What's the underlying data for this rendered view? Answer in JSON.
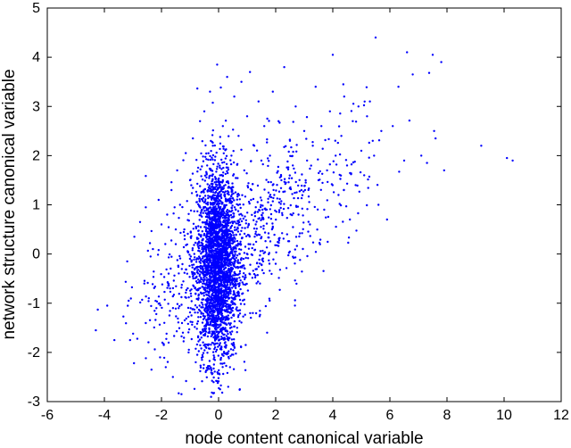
{
  "chart_data": {
    "type": "scatter",
    "xlabel": "node content canonical variable",
    "ylabel": "network structure canonical variable",
    "xlim": [
      -6,
      12
    ],
    "ylim": [
      -3,
      5
    ],
    "x_ticks": [
      "-6",
      "-4",
      "-2",
      "0",
      "2",
      "4",
      "6",
      "8",
      "10",
      "12"
    ],
    "y_ticks": [
      "-3",
      "-2",
      "-1",
      "0",
      "1",
      "2",
      "3",
      "4",
      "5"
    ],
    "grid": false,
    "marker_color": "#0000ff",
    "series": [
      {
        "values_note": "",
        "points": [
          [
            -4.3,
            -1.55
          ],
          [
            -3.9,
            -1.05
          ],
          [
            -3.65,
            -1.75
          ],
          [
            -3.2,
            -0.15
          ],
          [
            -3.15,
            -0.95
          ],
          [
            -3.1,
            -1.75
          ],
          [
            -2.95,
            0.35
          ],
          [
            -2.75,
            0.65
          ],
          [
            -2.6,
            -0.6
          ],
          [
            -2.55,
            0.95
          ],
          [
            -2.35,
            -2.35
          ],
          [
            -2.3,
            0.1
          ],
          [
            -2.1,
            1.1
          ],
          [
            -2.05,
            -2.1
          ],
          [
            -2.0,
            0.6
          ],
          [
            -1.9,
            -1.4
          ],
          [
            -1.85,
            -2.3
          ],
          [
            -1.8,
            0.8
          ],
          [
            -1.75,
            -1.8
          ],
          [
            -1.7,
            -0.7
          ],
          [
            -1.65,
            1.3
          ],
          [
            -1.6,
            -2.5
          ],
          [
            -1.5,
            0.2
          ],
          [
            -1.45,
            1.7
          ],
          [
            -1.4,
            -1.1
          ],
          [
            -1.35,
            1.0
          ],
          [
            -1.3,
            -2.85
          ],
          [
            -1.25,
            -1.6
          ],
          [
            -1.2,
            0.5
          ],
          [
            -1.15,
            2.05
          ],
          [
            -1.1,
            -0.4
          ],
          [
            -1.05,
            -2.0
          ],
          [
            -1.0,
            1.5
          ],
          [
            -0.95,
            -1.25
          ],
          [
            -0.9,
            2.35
          ],
          [
            -0.85,
            0.0
          ],
          [
            -0.8,
            -2.2
          ],
          [
            -0.75,
            1.2
          ],
          [
            -0.7,
            -0.9
          ],
          [
            -0.65,
            2.7
          ],
          [
            -0.6,
            -1.7
          ],
          [
            -0.55,
            0.3
          ],
          [
            -0.5,
            2.9
          ],
          [
            -0.45,
            -2.4
          ],
          [
            -0.4,
            1.8
          ],
          [
            -0.35,
            -0.2
          ],
          [
            -0.3,
            3.3
          ],
          [
            -0.25,
            -1.35
          ],
          [
            -0.2,
            2.2
          ],
          [
            -0.15,
            -2.1
          ],
          [
            -0.1,
            0.7
          ],
          [
            -0.05,
            3.85
          ],
          [
            0.0,
            -0.5
          ],
          [
            0.05,
            1.6
          ],
          [
            0.1,
            -1.9
          ],
          [
            0.15,
            2.6
          ],
          [
            0.2,
            0.1
          ],
          [
            0.25,
            -1.0
          ],
          [
            0.3,
            3.6
          ],
          [
            0.35,
            1.1
          ],
          [
            0.4,
            -2.3
          ],
          [
            0.45,
            2.0
          ],
          [
            0.5,
            -0.3
          ],
          [
            0.55,
            3.2
          ],
          [
            0.6,
            0.9
          ],
          [
            0.65,
            -1.5
          ],
          [
            0.7,
            2.4
          ],
          [
            0.75,
            0.4
          ],
          [
            0.8,
            3.5
          ],
          [
            0.85,
            -0.8
          ],
          [
            0.9,
            1.7
          ],
          [
            0.95,
            -1.85
          ],
          [
            1.0,
            2.8
          ],
          [
            1.05,
            0.2
          ],
          [
            1.1,
            3.7
          ],
          [
            1.15,
            1.3
          ],
          [
            1.2,
            -1.2
          ],
          [
            1.25,
            2.2
          ],
          [
            1.3,
            0.6
          ],
          [
            1.4,
            3.1
          ],
          [
            1.45,
            -0.6
          ],
          [
            1.5,
            1.9
          ],
          [
            1.6,
            2.6
          ],
          [
            1.65,
            0.9
          ],
          [
            1.7,
            -1.6
          ],
          [
            1.8,
            2.0
          ],
          [
            1.9,
            3.3
          ],
          [
            1.95,
            1.2
          ],
          [
            2.0,
            -0.2
          ],
          [
            2.1,
            2.7
          ],
          [
            2.2,
            1.5
          ],
          [
            2.3,
            3.8
          ],
          [
            2.4,
            0.4
          ],
          [
            2.5,
            2.3
          ],
          [
            2.6,
            1.8
          ],
          [
            2.7,
            3.0
          ],
          [
            2.8,
            0.8
          ],
          [
            2.9,
            1.3
          ],
          [
            3.0,
            2.5
          ],
          [
            3.1,
            1.9
          ],
          [
            3.2,
            0.6
          ],
          [
            3.3,
            2.2
          ],
          [
            3.4,
            3.4
          ],
          [
            3.5,
            1.5
          ],
          [
            3.6,
            2.6
          ],
          [
            3.7,
            0.9
          ],
          [
            3.8,
            1.7
          ],
          [
            3.9,
            2.9
          ],
          [
            4.0,
            4.05
          ],
          [
            4.1,
            2.0
          ],
          [
            4.2,
            1.2
          ],
          [
            4.3,
            2.4
          ],
          [
            4.4,
            3.2
          ],
          [
            4.5,
            1.8
          ],
          [
            4.6,
            0.7
          ],
          [
            4.7,
            2.7
          ],
          [
            4.8,
            1.4
          ],
          [
            4.9,
            3.0
          ],
          [
            5.0,
            2.1
          ],
          [
            5.1,
            1.6
          ],
          [
            5.2,
            2.8
          ],
          [
            5.3,
            3.1
          ],
          [
            5.4,
            2.3
          ],
          [
            5.5,
            4.4
          ],
          [
            5.6,
            1.0
          ],
          [
            5.7,
            2.5
          ],
          [
            5.9,
            0.7
          ],
          [
            6.1,
            2.6
          ],
          [
            6.3,
            3.4
          ],
          [
            6.5,
            1.9
          ],
          [
            6.6,
            4.1
          ],
          [
            6.8,
            3.65
          ],
          [
            7.1,
            2.0
          ],
          [
            7.3,
            1.85
          ],
          [
            7.5,
            4.05
          ],
          [
            7.55,
            2.5
          ],
          [
            7.8,
            3.9
          ],
          [
            7.6,
            2.35
          ],
          [
            7.9,
            1.7
          ],
          [
            9.2,
            2.2
          ],
          [
            10.1,
            1.95
          ],
          [
            10.3,
            1.9
          ]
        ]
      }
    ],
    "dense_cluster": {
      "x_center": -0.05,
      "x_spread": 0.35,
      "y_center": -0.2,
      "y_spread": 1.0,
      "count": 2600
    },
    "trend_cloud": {
      "count": 900
    }
  }
}
